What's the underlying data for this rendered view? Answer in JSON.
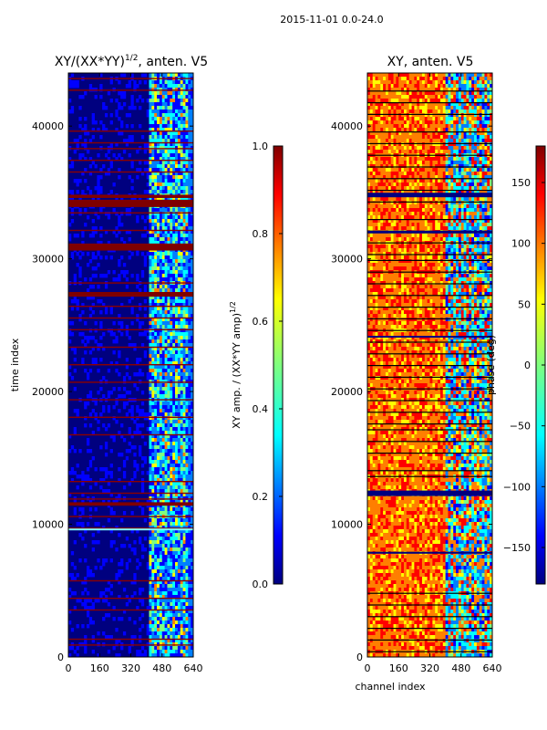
{
  "suptitle": "2015-11-01 0.0-24.0",
  "colors": {
    "jet": [
      "#00007f",
      "#0000ff",
      "#007fff",
      "#00ffff",
      "#7fff7f",
      "#ffff00",
      "#ff7f00",
      "#ff0000",
      "#7f0000"
    ],
    "flag_line": "#8b0000",
    "axis": "#000000"
  },
  "chart_data": [
    {
      "type": "heatmap",
      "title_main": "XY/(XX*YY)",
      "title_sup": "1/2",
      "title_tail": ", anten. V5",
      "xlabel": "",
      "ylabel": "time index",
      "xlim": [
        0,
        640
      ],
      "ylim": [
        0,
        44000
      ],
      "xticks": [
        "0",
        "160",
        "320",
        "480",
        "640"
      ],
      "yticks": [
        "0",
        "10000",
        "20000",
        "30000",
        "40000"
      ],
      "colorbar": {
        "label_main": "XY amp. / (XX*YY amp)",
        "label_sup": "1/2",
        "range": [
          0.0,
          1.0
        ],
        "ticks": [
          "0.0",
          "0.2",
          "0.4",
          "0.6",
          "0.8",
          "1.0"
        ]
      }
    },
    {
      "type": "heatmap",
      "title_main": "XY, anten. V5",
      "title_sup": "",
      "title_tail": "",
      "xlabel": "channel index",
      "ylabel": "",
      "xlim": [
        0,
        640
      ],
      "ylim": [
        0,
        44000
      ],
      "xticks": [
        "0",
        "160",
        "320",
        "480",
        "640"
      ],
      "yticks": [
        "0",
        "10000",
        "20000",
        "30000",
        "40000"
      ],
      "colorbar": {
        "label_main": "phase (deg)",
        "label_sup": "",
        "range": [
          -180,
          180
        ],
        "ticks": [
          "−150",
          "−100",
          "−50",
          "0",
          "50",
          "100",
          "150"
        ]
      }
    }
  ]
}
